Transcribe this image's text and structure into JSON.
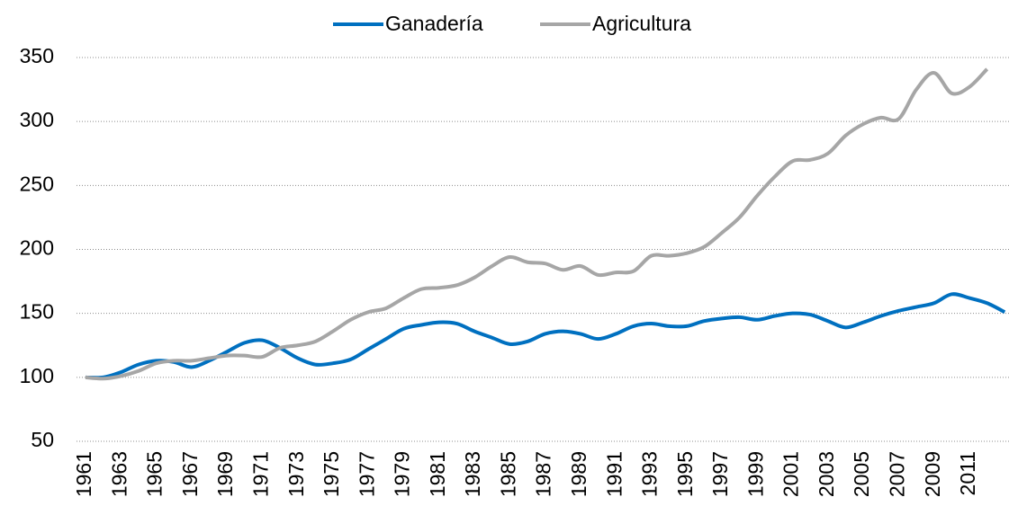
{
  "chart_data": {
    "type": "line",
    "categories": [
      "1961",
      null,
      "1963",
      null,
      "1965",
      null,
      "1967",
      null,
      "1969",
      null,
      "1971",
      null,
      "1973",
      null,
      "1975",
      null,
      "1977",
      null,
      "1979",
      null,
      "1981",
      null,
      "1983",
      null,
      "1985",
      null,
      "1987",
      null,
      "1989",
      null,
      "1991",
      null,
      "1993",
      null,
      "1995",
      null,
      "1997",
      null,
      "1999",
      null,
      "2001",
      null,
      "2003",
      null,
      "2005",
      null,
      "2007",
      null,
      "2009",
      null,
      "2011",
      null,
      null
    ],
    "series": [
      {
        "name": "Ganadería",
        "color": "#0070c0",
        "values": [
          100,
          100,
          104,
          110,
          113,
          112,
          108,
          113,
          120,
          127,
          129,
          123,
          115,
          110,
          111,
          114,
          122,
          130,
          138,
          141,
          143,
          142,
          136,
          131,
          126,
          128,
          134,
          136,
          134,
          130,
          134,
          140,
          142,
          140,
          140,
          144,
          146,
          147,
          145,
          148,
          150,
          149,
          144,
          139,
          143,
          148,
          152,
          155,
          158,
          165,
          162,
          158,
          151
        ]
      },
      {
        "name": "Agricultura",
        "color": "#a6a6a6",
        "values": [
          100,
          99,
          101,
          105,
          111,
          113,
          113,
          115,
          117,
          117,
          116,
          123,
          125,
          128,
          136,
          145,
          151,
          154,
          162,
          169,
          170,
          172,
          178,
          187,
          194,
          190,
          189,
          184,
          187,
          180,
          182,
          183,
          195,
          195,
          197,
          202,
          213,
          225,
          242,
          257,
          269,
          270,
          275,
          289,
          298,
          303,
          302,
          325,
          338,
          322,
          327,
          341,
          null
        ]
      }
    ],
    "ylim": [
      50,
      350
    ],
    "yticks": [
      50,
      100,
      150,
      200,
      250,
      300,
      350
    ],
    "grid": true,
    "legend": "top"
  }
}
